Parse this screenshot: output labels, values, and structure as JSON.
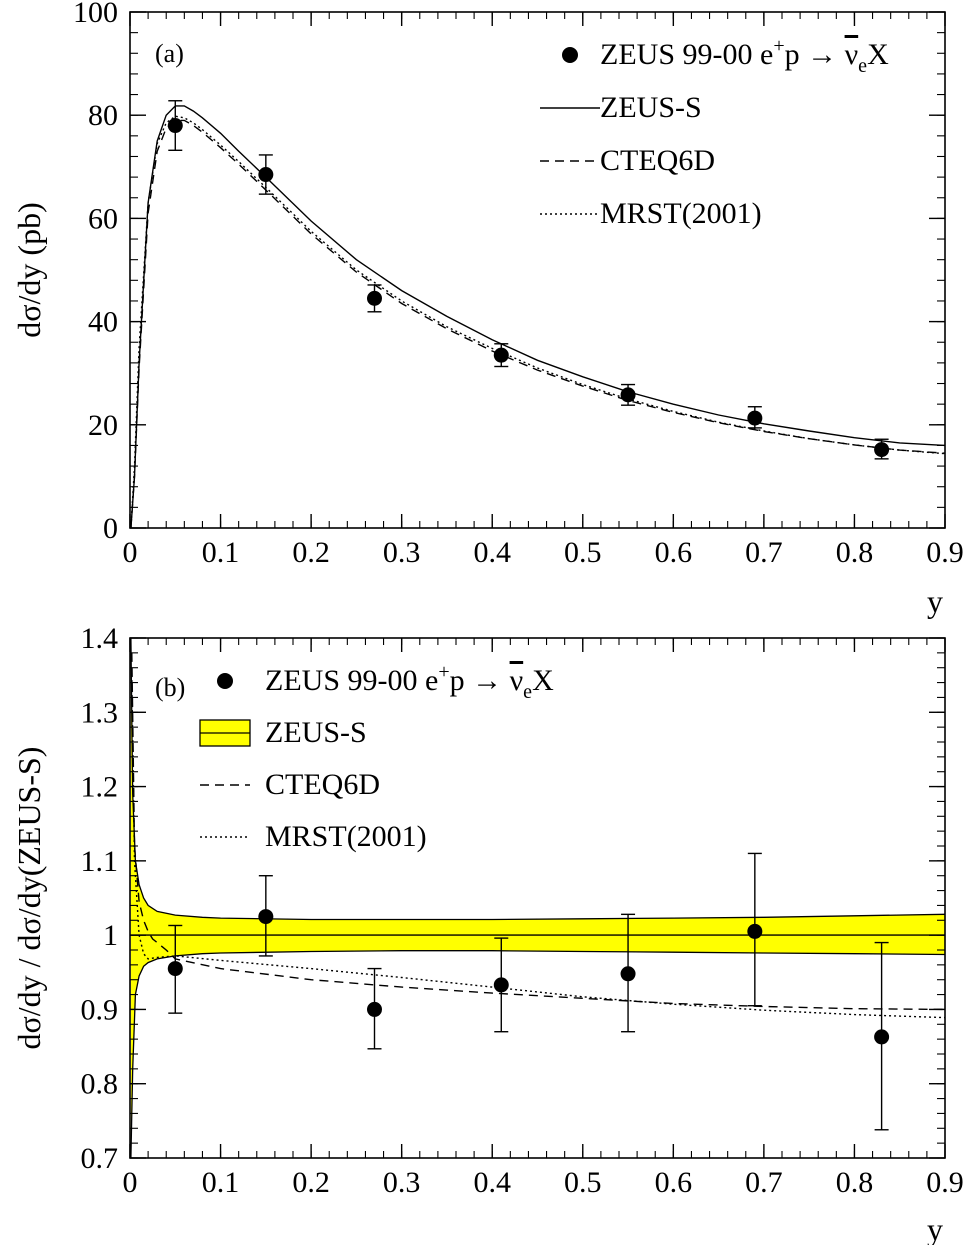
{
  "chart_data": [
    {
      "type": "line",
      "panel_label": "(a)",
      "xlabel": "y",
      "ylabel": "dσ/dy (pb)",
      "xlim": [
        0,
        0.9
      ],
      "ylim": [
        0,
        100
      ],
      "x_ticks": [
        0,
        0.1,
        0.2,
        0.3,
        0.4,
        0.5,
        0.6,
        0.7,
        0.8,
        0.9
      ],
      "x_tick_labels": [
        "0",
        "0.1",
        "0.2",
        "0.3",
        "0.4",
        "0.5",
        "0.6",
        "0.7",
        "0.8",
        "0.9"
      ],
      "y_ticks": [
        0,
        20,
        40,
        60,
        80,
        100
      ],
      "y_tick_labels": [
        "0",
        "20",
        "40",
        "60",
        "80",
        "100"
      ],
      "legend": {
        "placement": "top-right",
        "entries": [
          {
            "label_pre": "ZEUS 99-00 e",
            "label_sup": "+",
            "label_mid": "p → ",
            "label_bar": "ν",
            "label_sub": "e",
            "label_post": "X",
            "marker": "point"
          },
          {
            "label": "ZEUS-S",
            "marker": "solid"
          },
          {
            "label": "CTEQ6D",
            "marker": "dashed"
          },
          {
            "label": "MRST(2001)",
            "marker": "dotted"
          }
        ]
      },
      "points": {
        "x": [
          0.05,
          0.15,
          0.27,
          0.41,
          0.55,
          0.69,
          0.83
        ],
        "y": [
          78,
          68.5,
          44.5,
          33.5,
          25.8,
          21.3,
          15.2
        ],
        "err_low": [
          4.8,
          3.8,
          2.6,
          2.2,
          2.0,
          1.9,
          1.8
        ],
        "err_high": [
          4.8,
          3.8,
          2.6,
          2.2,
          2.0,
          2.2,
          2.0
        ]
      },
      "series": [
        {
          "name": "ZEUS-S",
          "style": "solid",
          "x": [
            0.001,
            0.005,
            0.01,
            0.02,
            0.03,
            0.04,
            0.05,
            0.06,
            0.07,
            0.08,
            0.1,
            0.12,
            0.15,
            0.2,
            0.25,
            0.3,
            0.35,
            0.4,
            0.45,
            0.5,
            0.55,
            0.6,
            0.65,
            0.7,
            0.75,
            0.8,
            0.85,
            0.9
          ],
          "y": [
            0,
            10,
            32,
            63,
            75,
            80,
            81.8,
            81.8,
            80.8,
            79.5,
            76.5,
            73,
            68,
            59.5,
            52,
            46,
            41,
            36.5,
            32.5,
            29.3,
            26.4,
            24,
            21.9,
            20.2,
            18.8,
            17.5,
            16.5,
            16
          ]
        },
        {
          "name": "CTEQ6D",
          "style": "dashed",
          "x": [
            0.001,
            0.005,
            0.01,
            0.02,
            0.03,
            0.04,
            0.05,
            0.06,
            0.07,
            0.08,
            0.1,
            0.12,
            0.15,
            0.2,
            0.25,
            0.3,
            0.35,
            0.4,
            0.45,
            0.5,
            0.55,
            0.6,
            0.65,
            0.7,
            0.75,
            0.8,
            0.85,
            0.9
          ],
          "y": [
            0,
            10,
            31,
            61,
            73,
            77.5,
            79,
            79,
            78,
            76.7,
            73.7,
            70.5,
            65.5,
            57,
            49.6,
            43.5,
            38.6,
            34.3,
            30.6,
            27.5,
            24.7,
            22.4,
            20.4,
            18.7,
            17.3,
            16.1,
            15.1,
            14.5
          ]
        },
        {
          "name": "MRST(2001)",
          "style": "dotted",
          "x": [
            0.001,
            0.005,
            0.01,
            0.02,
            0.03,
            0.04,
            0.05,
            0.06,
            0.07,
            0.08,
            0.1,
            0.12,
            0.15,
            0.2,
            0.25,
            0.3,
            0.35,
            0.4,
            0.45,
            0.5,
            0.55,
            0.6,
            0.65,
            0.7,
            0.75,
            0.8,
            0.85,
            0.9
          ],
          "y": [
            0,
            12,
            35,
            63,
            74.5,
            78.5,
            79.8,
            79.5,
            78.5,
            77.2,
            74.2,
            71,
            66,
            57.5,
            50,
            44,
            39,
            34.8,
            31,
            27.8,
            25,
            22.6,
            20.5,
            18.8,
            17.3,
            16.1,
            15.1,
            14.4
          ]
        }
      ]
    },
    {
      "type": "line",
      "panel_label": "(b)",
      "xlabel": "y",
      "ylabel": "dσ/dy / dσ/dy(ZEUS-S)",
      "xlim": [
        0,
        0.9
      ],
      "ylim": [
        0.7,
        1.4
      ],
      "x_ticks": [
        0,
        0.1,
        0.2,
        0.3,
        0.4,
        0.5,
        0.6,
        0.7,
        0.8,
        0.9
      ],
      "x_tick_labels": [
        "0",
        "0.1",
        "0.2",
        "0.3",
        "0.4",
        "0.5",
        "0.6",
        "0.7",
        "0.8",
        "0.9"
      ],
      "y_ticks": [
        0.7,
        0.8,
        0.9,
        1.0,
        1.1,
        1.2,
        1.3,
        1.4
      ],
      "y_tick_labels": [
        "0.7",
        "0.8",
        "0.9",
        "1",
        "1.1",
        "1.2",
        "1.3",
        "1.4"
      ],
      "band_color": "#ffff00",
      "legend": {
        "placement": "top-left",
        "entries": [
          {
            "label_pre": "ZEUS 99-00 e",
            "label_sup": "+",
            "label_mid": "p → ",
            "label_bar": "ν",
            "label_sub": "e",
            "label_post": "X",
            "marker": "point"
          },
          {
            "label": "ZEUS-S",
            "marker": "band"
          },
          {
            "label": "CTEQ6D",
            "marker": "dashed"
          },
          {
            "label": "MRST(2001)",
            "marker": "dotted"
          }
        ]
      },
      "points": {
        "x": [
          0.05,
          0.15,
          0.27,
          0.41,
          0.55,
          0.69,
          0.83
        ],
        "y": [
          0.955,
          1.025,
          0.9,
          0.933,
          0.948,
          1.005,
          0.863
        ],
        "err_low": [
          0.06,
          0.053,
          0.053,
          0.063,
          0.078,
          0.1,
          0.125
        ],
        "err_high": [
          0.058,
          0.055,
          0.055,
          0.063,
          0.08,
          0.105,
          0.127
        ]
      },
      "band": {
        "x": [
          0.001,
          0.003,
          0.006,
          0.01,
          0.015,
          0.02,
          0.03,
          0.05,
          0.08,
          0.1,
          0.2,
          0.3,
          0.4,
          0.5,
          0.6,
          0.7,
          0.8,
          0.9
        ],
        "upper": [
          1.4,
          1.19,
          1.1,
          1.068,
          1.05,
          1.04,
          1.032,
          1.027,
          1.024,
          1.023,
          1.021,
          1.021,
          1.021,
          1.022,
          1.023,
          1.024,
          1.026,
          1.028
        ],
        "lower": [
          0.7,
          0.82,
          0.92,
          0.945,
          0.958,
          0.963,
          0.968,
          0.972,
          0.975,
          0.976,
          0.978,
          0.979,
          0.979,
          0.978,
          0.977,
          0.976,
          0.975,
          0.974
        ]
      },
      "series": [
        {
          "name": "ZEUS-S",
          "style": "solid",
          "x": [
            0,
            0.9
          ],
          "y": [
            1.0,
            1.0
          ]
        },
        {
          "name": "CTEQ6D",
          "style": "dashed",
          "x": [
            0.002,
            0.005,
            0.01,
            0.015,
            0.02,
            0.025,
            0.03,
            0.04,
            0.05,
            0.1,
            0.2,
            0.3,
            0.4,
            0.5,
            0.6,
            0.7,
            0.8,
            0.9
          ],
          "y": [
            1.38,
            1.12,
            1.045,
            1.02,
            1.005,
            0.995,
            0.99,
            0.98,
            0.968,
            0.955,
            0.94,
            0.93,
            0.922,
            0.915,
            0.908,
            0.904,
            0.901,
            0.9
          ]
        },
        {
          "name": "MRST(2001)",
          "style": "dotted",
          "x": [
            0.002,
            0.005,
            0.01,
            0.015,
            0.02,
            0.03,
            0.05,
            0.1,
            0.2,
            0.3,
            0.4,
            0.5,
            0.6,
            0.7,
            0.8,
            0.9
          ],
          "y": [
            1.35,
            1.1,
            1.0,
            0.975,
            0.968,
            0.97,
            0.972,
            0.966,
            0.955,
            0.943,
            0.93,
            0.917,
            0.907,
            0.899,
            0.893,
            0.889
          ]
        }
      ]
    }
  ]
}
